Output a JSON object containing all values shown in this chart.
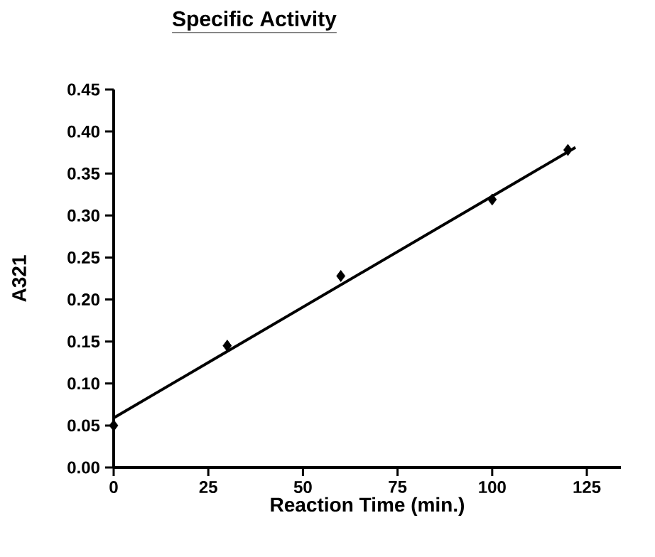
{
  "chart_data": {
    "type": "scatter",
    "title": "Specific Activity",
    "xlabel": "Reaction Time (min.)",
    "ylabel": "A321",
    "x": [
      0,
      30,
      60,
      100,
      120
    ],
    "marker": "diamond",
    "grid": false,
    "series": [
      {
        "color": "#000000",
        "values": [
          0.05,
          0.145,
          0.228,
          0.319,
          0.378
        ]
      },
      {
        "type": "line",
        "color": "#000000",
        "x": [
          0,
          122
        ],
        "values": [
          0.059,
          0.381
        ],
        "line_style": "solid",
        "marker": "none"
      }
    ],
    "xlim": [
      0,
      134
    ],
    "ylim": [
      0,
      0.45
    ],
    "xticks": [
      0,
      25,
      50,
      75,
      100,
      125
    ],
    "yticks": [
      {
        "value": 0,
        "label": "0.00"
      },
      {
        "value": 0.05,
        "label": "0.05"
      },
      {
        "value": 0.1,
        "label": "0.10"
      },
      {
        "value": 0.15,
        "label": "0.15"
      },
      {
        "value": 0.2,
        "label": "0.20"
      },
      {
        "value": 0.25,
        "label": "0.25"
      },
      {
        "value": 0.3,
        "label": "0.30"
      },
      {
        "value": 0.35,
        "label": "0.35"
      },
      {
        "value": 0.4,
        "label": "0.40"
      },
      {
        "value": 0.45,
        "label": "0.45"
      }
    ]
  }
}
